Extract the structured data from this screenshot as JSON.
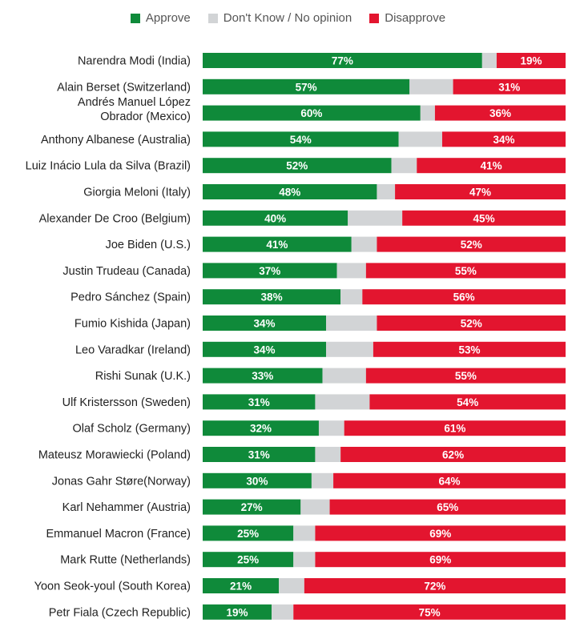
{
  "legend": [
    {
      "label": "Approve",
      "color": "#0f8a3a"
    },
    {
      "label": "Don't Know / No opinion",
      "color": "#d2d4d6"
    },
    {
      "label": "Disapprove",
      "color": "#e3152f"
    }
  ],
  "chart_data": {
    "type": "bar",
    "orientation": "horizontal-stacked",
    "xlim": [
      0,
      100
    ],
    "legend_position": "top-center",
    "categories": [
      [
        "Narendra Modi (India)"
      ],
      [
        "Alain Berset (Switzerland)"
      ],
      [
        "Andrés Manuel López",
        "Obrador (Mexico)"
      ],
      [
        "Anthony Albanese (Australia)"
      ],
      [
        "Luiz Inácio Lula da Silva (Brazil)"
      ],
      [
        "Giorgia Meloni (Italy)"
      ],
      [
        "Alexander De Croo (Belgium)"
      ],
      [
        "Joe Biden (U.S.)"
      ],
      [
        "Justin Trudeau (Canada)"
      ],
      [
        "Pedro Sánchez (Spain)"
      ],
      [
        "Fumio Kishida (Japan)"
      ],
      [
        "Leo Varadkar (Ireland)"
      ],
      [
        "Rishi Sunak (U.K.)"
      ],
      [
        "Ulf Kristersson (Sweden)"
      ],
      [
        "Olaf Scholz (Germany)"
      ],
      [
        "Mateusz Morawiecki (Poland)"
      ],
      [
        "Jonas Gahr Støre(Norway)"
      ],
      [
        "Karl Nehammer (Austria)"
      ],
      [
        "Emmanuel Macron (France)"
      ],
      [
        "Mark Rutte (Netherlands)"
      ],
      [
        "Yoon Seok-youl (South Korea)"
      ],
      [
        "Petr Fiala (Czech Republic)"
      ]
    ],
    "series": [
      {
        "name": "Approve",
        "color": "#0f8a3a",
        "values": [
          77,
          57,
          60,
          54,
          52,
          48,
          40,
          41,
          37,
          38,
          34,
          34,
          33,
          31,
          32,
          31,
          30,
          27,
          25,
          25,
          21,
          19
        ],
        "labels": [
          "77%",
          "57%",
          "60%",
          "54%",
          "52%",
          "48%",
          "40%",
          "41%",
          "37%",
          "38%",
          "34%",
          "34%",
          "33%",
          "31%",
          "32%",
          "31%",
          "30%",
          "27%",
          "25%",
          "25%",
          "21%",
          "19%"
        ]
      },
      {
        "name": "Don't Know / No opinion",
        "color": "#d2d4d6",
        "values": [
          4,
          12,
          4,
          12,
          7,
          5,
          15,
          7,
          8,
          6,
          14,
          13,
          12,
          15,
          7,
          7,
          6,
          8,
          6,
          6,
          7,
          6
        ],
        "labels": [
          "",
          "",
          "",
          "",
          "",
          "",
          "",
          "",
          "",
          "",
          "",
          "",
          "",
          "",
          "",
          "",
          "",
          "",
          "",
          "",
          "",
          ""
        ]
      },
      {
        "name": "Disapprove",
        "color": "#e3152f",
        "values": [
          19,
          31,
          36,
          34,
          41,
          47,
          45,
          52,
          55,
          56,
          52,
          53,
          55,
          54,
          61,
          62,
          64,
          65,
          69,
          69,
          72,
          75
        ],
        "labels": [
          "19%",
          "31%",
          "36%",
          "34%",
          "41%",
          "47%",
          "45%",
          "52%",
          "55%",
          "56%",
          "52%",
          "53%",
          "55%",
          "54%",
          "61%",
          "62%",
          "64%",
          "65%",
          "69%",
          "69%",
          "72%",
          "75%"
        ]
      }
    ]
  }
}
